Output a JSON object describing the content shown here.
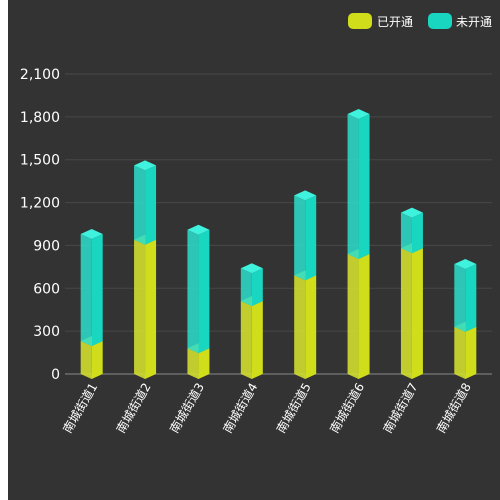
{
  "chart_data": {
    "type": "bar",
    "stacked": true,
    "style": "3d-prism",
    "categories": [
      "南城街道1",
      "南城街道2",
      "南城街道3",
      "南城街道4",
      "南城街道5",
      "南城街道6",
      "南城街道7",
      "南城街道8"
    ],
    "series": [
      {
        "name": "已开通",
        "values": [
          230,
          940,
          180,
          510,
          690,
          840,
          880,
          330
        ],
        "color": "#cfdd1a",
        "top_color": "#e9f52e"
      },
      {
        "name": "未开通",
        "values": [
          750,
          520,
          830,
          230,
          560,
          980,
          250,
          440
        ],
        "color": "#19d6c1",
        "top_color": "#3ff2dd"
      }
    ],
    "y_ticks": [
      "0",
      "300",
      "600",
      "900",
      "1,200",
      "1,500",
      "1,800",
      "2,100"
    ],
    "ylim": [
      0,
      2100
    ],
    "grid": true,
    "legend_position": "top-right",
    "background": "#333333"
  }
}
